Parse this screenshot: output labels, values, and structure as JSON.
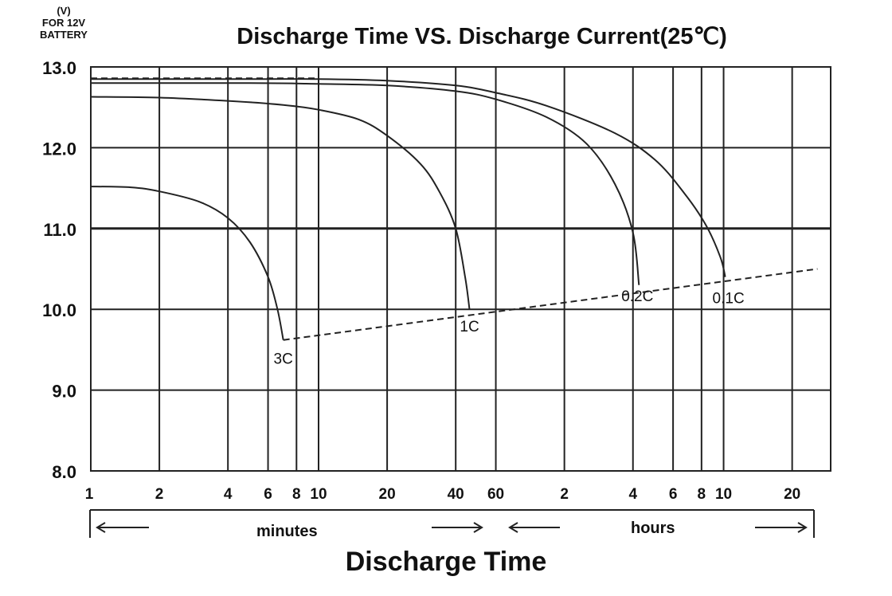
{
  "chart_data": {
    "type": "line",
    "title": "Discharge Time VS. Discharge Current(25℃)",
    "ylabel_lines": [
      "(V)",
      "FOR 12V",
      "BATTERY"
    ],
    "xlabel": "Discharge Time",
    "x_scale": "log",
    "x_unit": "minutes",
    "ylim": [
      8.0,
      13.0
    ],
    "y_ticks": [
      "8.0",
      "9.0",
      "10.0",
      "11.0",
      "12.0",
      "13.0"
    ],
    "x_ticks": [
      {
        "label": "1",
        "minutes": 1
      },
      {
        "label": "2",
        "minutes": 2
      },
      {
        "label": "4",
        "minutes": 4
      },
      {
        "label": "6",
        "minutes": 6
      },
      {
        "label": "8",
        "minutes": 8
      },
      {
        "label": "10",
        "minutes": 10
      },
      {
        "label": "20",
        "minutes": 20
      },
      {
        "label": "40",
        "minutes": 40
      },
      {
        "label": "60",
        "minutes": 60
      },
      {
        "label": "2",
        "minutes": 120
      },
      {
        "label": "4",
        "minutes": 240
      },
      {
        "label": "6",
        "minutes": 360
      },
      {
        "label": "8",
        "minutes": 480
      },
      {
        "label": "10",
        "minutes": 600
      },
      {
        "label": "20",
        "minutes": 1200
      }
    ],
    "segments": [
      "minutes",
      "hours"
    ],
    "grid": true,
    "series": [
      {
        "name": "3C",
        "x": [
          1,
          1.5,
          2,
          3,
          4,
          5,
          6,
          6.6,
          7.0
        ],
        "y": [
          11.52,
          11.51,
          11.46,
          11.33,
          11.13,
          10.83,
          10.4,
          10.0,
          9.62
        ]
      },
      {
        "name": "1C",
        "x": [
          1,
          2,
          4,
          7,
          10,
          15,
          20,
          28,
          34,
          40,
          44,
          46
        ],
        "y": [
          12.63,
          12.62,
          12.58,
          12.53,
          12.47,
          12.35,
          12.15,
          11.8,
          11.45,
          11.0,
          10.4,
          10.0
        ]
      },
      {
        "name": "0.2C",
        "x": [
          1,
          5,
          10,
          20,
          40,
          60,
          100,
          150,
          200,
          240,
          255
        ],
        "y": [
          12.8,
          12.8,
          12.79,
          12.77,
          12.7,
          12.6,
          12.38,
          12.05,
          11.55,
          10.95,
          10.3
        ]
      },
      {
        "name": "0.1C",
        "x": [
          1,
          5,
          10,
          20,
          40,
          60,
          100,
          200,
          300,
          400,
          500,
          580,
          610
        ],
        "y": [
          12.85,
          12.85,
          12.85,
          12.83,
          12.77,
          12.68,
          12.52,
          12.18,
          11.85,
          11.45,
          11.05,
          10.65,
          10.4
        ]
      }
    ],
    "cutoff_line": {
      "x": [
        7.0,
        1550
      ],
      "y": [
        9.62,
        10.5
      ]
    },
    "initial_dashed_line": {
      "x": [
        1,
        10
      ],
      "y": [
        12.85,
        12.85
      ]
    }
  }
}
